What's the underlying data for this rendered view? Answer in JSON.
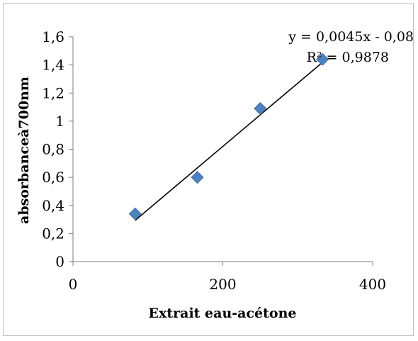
{
  "chart_data": {
    "type": "scatter",
    "title": "",
    "xlabel": "Extrait eau-acétone",
    "ylabel": "absorbanceà700nm",
    "xlim": [
      0,
      400
    ],
    "ylim": [
      0,
      1.6
    ],
    "x_ticks": [
      0,
      200,
      400
    ],
    "y_ticks": [
      0,
      0.2,
      0.4,
      0.6,
      0.8,
      1,
      1.2,
      1.4,
      1.6
    ],
    "x_tick_labels": [
      "0",
      "200",
      "400"
    ],
    "y_tick_labels": [
      "0",
      "0,2",
      "0,4",
      "0,6",
      "0,8",
      "1",
      "1,2",
      "1,4",
      "1,6"
    ],
    "grid": false,
    "legend": "none",
    "marker_color": "#4f81bd",
    "trendline_color": "#000000",
    "series": [
      {
        "x": [
          83,
          166,
          250,
          333
        ],
        "y": [
          0.34,
          0.6,
          1.09,
          1.44
        ]
      }
    ],
    "trendline": {
      "slope": 0.0045,
      "intercept": -0.08,
      "x_range": [
        83,
        333
      ],
      "equation_label": "y = 0,0045x - 0,08",
      "r2_label": "R² = 0,9878"
    }
  }
}
